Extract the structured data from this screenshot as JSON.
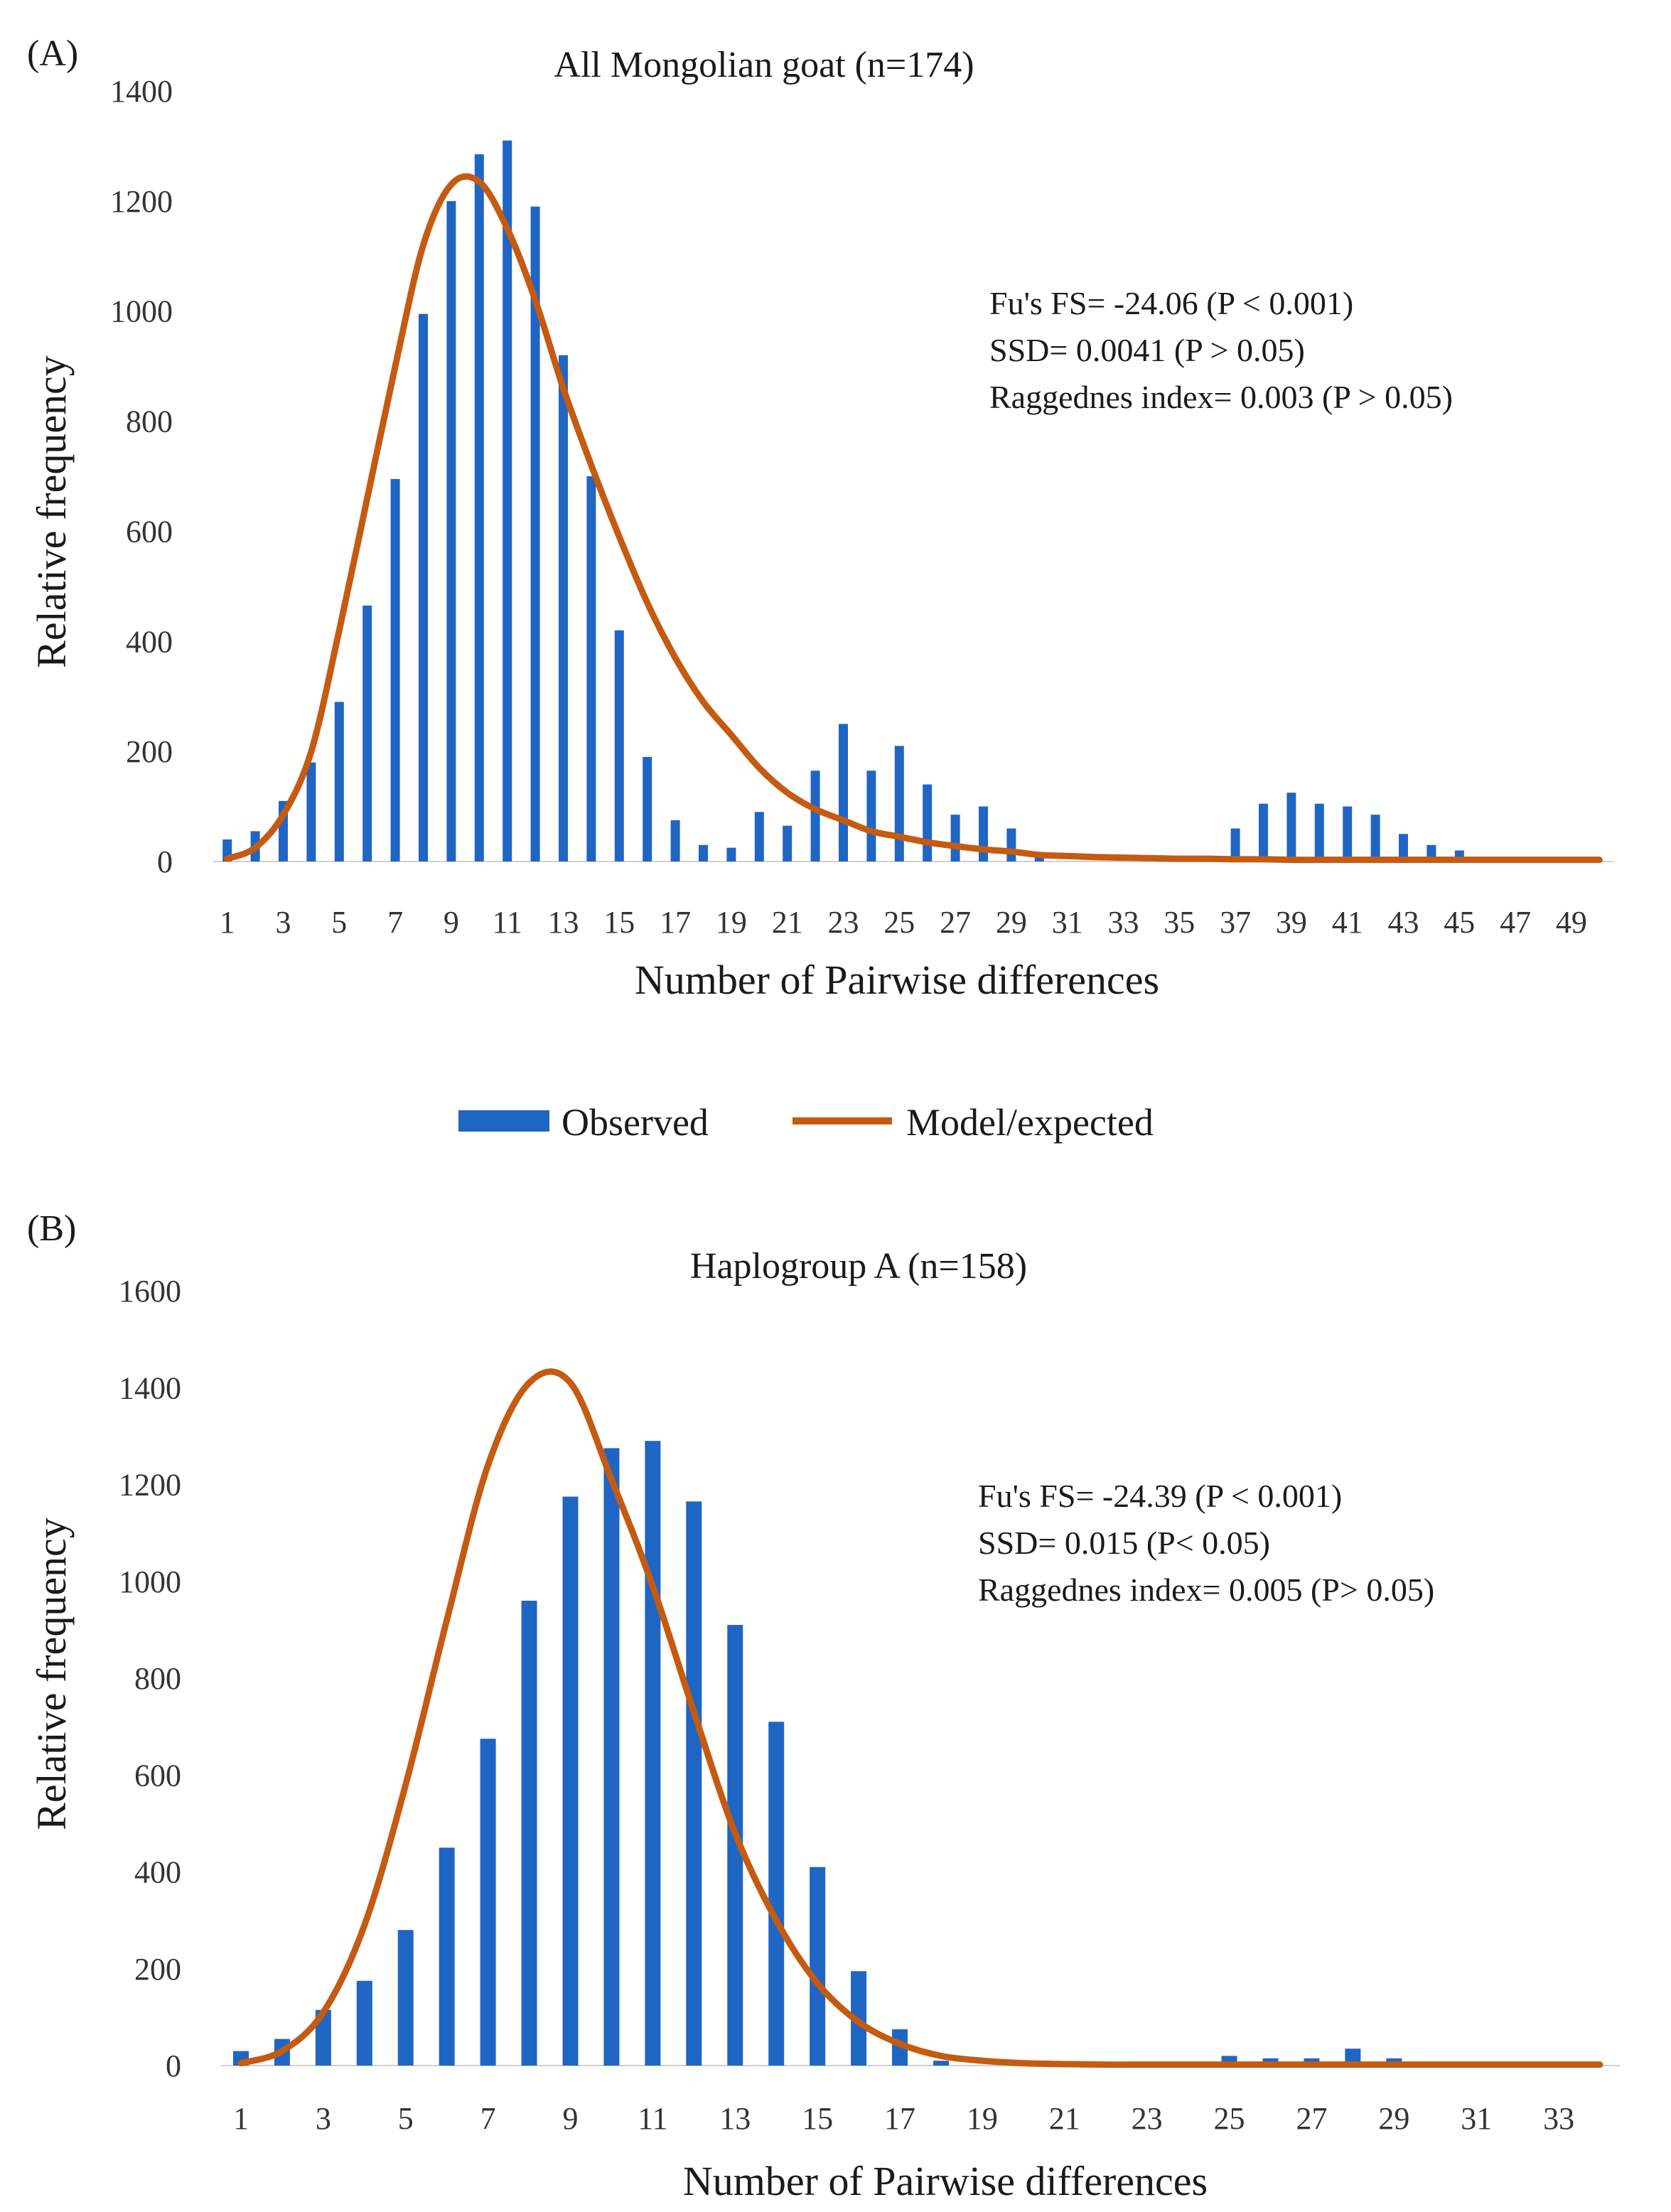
{
  "colors": {
    "observed": "#1f66c4",
    "model": "#c55a11",
    "axis": "#d0d0d0",
    "text": "#1a1a1a"
  },
  "legend": {
    "observed": "Observed",
    "model": "Model/expected"
  },
  "chart_data": [
    {
      "type": "bar",
      "panel_label": "(A)",
      "title": "All Mongolian goat (n=174)",
      "xlabel": "Number of Pairwise differences",
      "ylabel": "Relative frequency",
      "ylim": [
        0,
        1400
      ],
      "yticks": [
        0,
        200,
        400,
        600,
        800,
        1000,
        1200,
        1400
      ],
      "x": [
        1,
        2,
        3,
        4,
        5,
        6,
        7,
        8,
        9,
        10,
        11,
        12,
        13,
        14,
        15,
        16,
        17,
        18,
        19,
        20,
        21,
        22,
        23,
        24,
        25,
        26,
        27,
        28,
        29,
        30,
        31,
        32,
        33,
        34,
        35,
        36,
        37,
        38,
        39,
        40,
        41,
        42,
        43,
        44,
        45,
        46,
        47,
        48,
        49,
        50
      ],
      "x_tick_labels": [
        "1",
        "3",
        "5",
        "7",
        "9",
        "11",
        "13",
        "15",
        "17",
        "19",
        "21",
        "23",
        "25",
        "27",
        "29",
        "31",
        "33",
        "35",
        "37",
        "39",
        "41",
        "43",
        "45",
        "47",
        "49"
      ],
      "stats": [
        "Fu's FS= -24.06 (P < 0.001)",
        "SSD= 0.0041 (P > 0.05)",
        "Raggednes index= 0.003 (P > 0.05)"
      ],
      "series": [
        {
          "name": "Observed",
          "kind": "bar",
          "values": [
            40,
            55,
            110,
            180,
            290,
            465,
            695,
            995,
            1200,
            1285,
            1310,
            1190,
            920,
            700,
            420,
            190,
            75,
            30,
            25,
            90,
            65,
            165,
            250,
            165,
            210,
            140,
            85,
            100,
            60,
            10,
            0,
            0,
            0,
            0,
            0,
            10,
            60,
            105,
            125,
            105,
            100,
            85,
            50,
            30,
            20,
            0,
            0,
            0,
            0,
            0
          ]
        },
        {
          "name": "Model/expected",
          "kind": "line",
          "values": [
            5,
            25,
            85,
            200,
            420,
            660,
            900,
            1120,
            1230,
            1235,
            1150,
            1020,
            860,
            720,
            590,
            470,
            370,
            290,
            230,
            170,
            125,
            95,
            75,
            55,
            45,
            35,
            28,
            22,
            18,
            12,
            10,
            8,
            7,
            6,
            5,
            5,
            4,
            4,
            3,
            3,
            3,
            3,
            3,
            3,
            3,
            3,
            3,
            3,
            3,
            3
          ]
        }
      ]
    },
    {
      "type": "bar",
      "panel_label": "(B)",
      "title": "Haplogroup A (n=158)",
      "xlabel": "Number of Pairwise differences",
      "ylabel": "Relative frequency",
      "ylim": [
        0,
        1600
      ],
      "yticks": [
        0,
        200,
        400,
        600,
        800,
        1000,
        1200,
        1400,
        1600
      ],
      "x": [
        1,
        2,
        3,
        4,
        5,
        6,
        7,
        8,
        9,
        10,
        11,
        12,
        13,
        14,
        15,
        16,
        17,
        18,
        19,
        20,
        21,
        22,
        23,
        24,
        25,
        26,
        27,
        28,
        29,
        30,
        31,
        32,
        33,
        34
      ],
      "x_tick_labels": [
        "1",
        "3",
        "5",
        "7",
        "9",
        "11",
        "13",
        "15",
        "17",
        "19",
        "21",
        "23",
        "25",
        "27",
        "29",
        "31",
        "33"
      ],
      "stats": [
        "Fu's FS= -24.39 (P < 0.001)",
        "SSD= 0.015 (P< 0.05)",
        "Raggednes index= 0.005 (P> 0.05)"
      ],
      "series": [
        {
          "name": "Observed",
          "kind": "bar",
          "values": [
            30,
            55,
            115,
            175,
            280,
            450,
            675,
            960,
            1175,
            1275,
            1290,
            1165,
            910,
            710,
            410,
            195,
            75,
            10,
            0,
            0,
            0,
            0,
            0,
            0,
            20,
            15,
            15,
            35,
            15,
            0,
            0,
            0,
            0,
            0
          ]
        },
        {
          "name": "Model/expected",
          "kind": "line",
          "values": [
            5,
            30,
            110,
            290,
            580,
            920,
            1240,
            1410,
            1410,
            1210,
            990,
            730,
            480,
            300,
            170,
            90,
            45,
            20,
            10,
            5,
            3,
            2,
            2,
            2,
            2,
            2,
            2,
            2,
            2,
            2,
            2,
            2,
            2,
            2
          ]
        }
      ]
    }
  ]
}
